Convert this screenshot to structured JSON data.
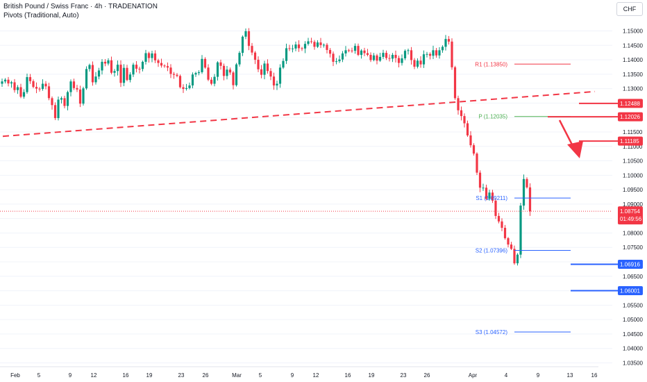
{
  "header": {
    "title": "British Pound / Swiss Franc · 4h · TRADENATION",
    "indicator": "Pivots (Traditional, Auto)",
    "currency": "CHF"
  },
  "colors": {
    "up": "#089981",
    "down": "#f23645",
    "support_line": "#2962ff",
    "resistance_line": "#f23645",
    "pivot_p": "#4caf50",
    "grid": "#f0f3fa",
    "axis_text": "#131722"
  },
  "chart_data": {
    "type": "candlestick",
    "instrument": "British Pound / Swiss Franc",
    "timeframe": "4h",
    "ylim": [
      1.0325,
      1.155
    ],
    "y_ticks": [
      1.035,
      1.04,
      1.045,
      1.05,
      1.055,
      1.06,
      1.065,
      1.07,
      1.075,
      1.08,
      1.085,
      1.09,
      1.095,
      1.1,
      1.105,
      1.11,
      1.115,
      1.12,
      1.125,
      1.13,
      1.135,
      1.14,
      1.145,
      1.15
    ],
    "y_tick_labels": [
      "1.03500",
      "1.04000",
      "1.04500",
      "1.05000",
      "1.05500",
      "1.06000",
      "1.06500",
      "1.07000",
      "1.07500",
      "1.08000",
      "1.08500",
      "1.09000",
      "1.09500",
      "1.10000",
      "1.10500",
      "1.11000",
      "1.11500",
      "1.12000",
      "1.12500",
      "1.13000",
      "1.13500",
      "1.14000",
      "1.14500",
      "1.15000"
    ],
    "x_ticks": [
      "Feb",
      "5",
      "9",
      "12",
      "16",
      "19",
      "23",
      "26",
      "Mar",
      "5",
      "9",
      "12",
      "16",
      "19",
      "23",
      "26",
      "Apr",
      "4",
      "9",
      "13",
      "16"
    ],
    "closes": [
      1.1325,
      1.1331,
      1.1318,
      1.1322,
      1.1295,
      1.1305,
      1.1272,
      1.1288,
      1.134,
      1.1326,
      1.1306,
      1.13,
      1.1299,
      1.1317,
      1.1308,
      1.1267,
      1.1243,
      1.1198,
      1.1262,
      1.1267,
      1.124,
      1.1288,
      1.1325,
      1.1302,
      1.1297,
      1.1248,
      1.1301,
      1.1368,
      1.1382,
      1.1322,
      1.1342,
      1.1363,
      1.1393,
      1.1387,
      1.1398,
      1.1355,
      1.1361,
      1.1383,
      1.132,
      1.1372,
      1.133,
      1.1349,
      1.1383,
      1.1369,
      1.1368,
      1.1393,
      1.1423,
      1.1406,
      1.1422,
      1.1398,
      1.1389,
      1.138,
      1.1378,
      1.1373,
      1.1351,
      1.1348,
      1.1344,
      1.1305,
      1.1299,
      1.1302,
      1.1311,
      1.1349,
      1.1354,
      1.1357,
      1.1403,
      1.1373,
      1.1331,
      1.1317,
      1.1341,
      1.1391,
      1.1379,
      1.1344,
      1.1366,
      1.1356,
      1.1312,
      1.1384,
      1.1424,
      1.148,
      1.1499,
      1.1448,
      1.1425,
      1.14,
      1.1367,
      1.1348,
      1.1387,
      1.1361,
      1.1342,
      1.1311,
      1.1317,
      1.1373,
      1.1396,
      1.144,
      1.1439,
      1.1439,
      1.1453,
      1.144,
      1.1439,
      1.1455,
      1.1464,
      1.1462,
      1.1445,
      1.146,
      1.1451,
      1.1452,
      1.1434,
      1.1421,
      1.1393,
      1.1395,
      1.1401,
      1.1422,
      1.1433,
      1.1432,
      1.1431,
      1.1448,
      1.1417,
      1.1432,
      1.1423,
      1.1417,
      1.1399,
      1.1415,
      1.1397,
      1.141,
      1.1424,
      1.1406,
      1.1404,
      1.1417,
      1.1406,
      1.1389,
      1.1405,
      1.1431,
      1.1433,
      1.1399,
      1.1376,
      1.1397,
      1.1384,
      1.1419,
      1.142,
      1.1414,
      1.1433,
      1.1415,
      1.1433,
      1.1445,
      1.1472,
      1.1463,
      1.1374,
      1.1267,
      1.1225,
      1.1205,
      1.118,
      1.1138,
      1.1104,
      1.1075,
      1.1009,
      1.0957,
      1.0957,
      1.0918,
      1.094,
      1.0912,
      1.0859,
      1.084,
      1.0818,
      1.0782,
      1.076,
      1.0745,
      1.0695,
      1.0725,
      1.0895,
      1.0987,
      1.0958,
      1.0875
    ]
  },
  "pivots": {
    "R1": {
      "label": "R1 (1.13850)",
      "value": 1.1385
    },
    "P": {
      "label": "P (1.12035)",
      "value": 1.12035
    },
    "S1": {
      "label": "S1 (1.09211)",
      "value": 1.09211
    },
    "S2": {
      "label": "S2 (1.07396)",
      "value": 1.07396
    },
    "S3": {
      "label": "S3 (1.04572)",
      "value": 1.04572
    }
  },
  "levels": {
    "resistance": [
      {
        "label": "1.12488",
        "value": 1.12488
      },
      {
        "label": "1.12026",
        "value": 1.12026
      },
      {
        "label": "1.11185",
        "value": 1.11185
      }
    ],
    "support": [
      {
        "label": "1.06916",
        "value": 1.06916
      },
      {
        "label": "1.06001",
        "value": 1.06001
      }
    ]
  },
  "current_price": {
    "label": "1.08754",
    "value": 1.08754,
    "countdown": "01:49:56"
  },
  "trendline": {
    "start_value": 1.1135,
    "end_value": 1.129
  }
}
